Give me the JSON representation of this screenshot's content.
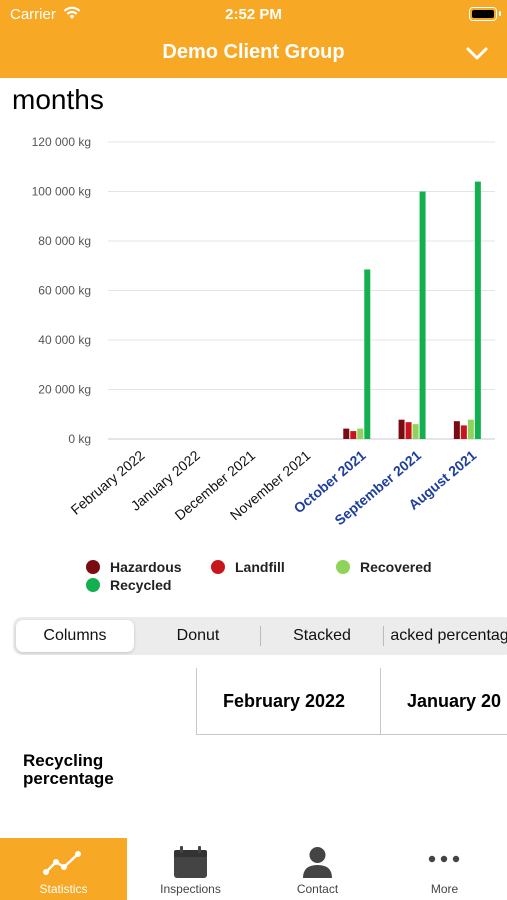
{
  "status_bar": {
    "carrier": "Carrier",
    "time": "2:52 PM"
  },
  "nav": {
    "title": "Demo Client Group"
  },
  "heading": "months",
  "chart_data": {
    "type": "bar",
    "title": "",
    "xlabel": "",
    "ylabel": "",
    "ylim": [
      0,
      120000
    ],
    "y_ticks": [
      "120 000 kg",
      "100 000 kg",
      "80 000 kg",
      "60 000 kg",
      "40 000 kg",
      "20 000 kg",
      "0 kg"
    ],
    "y_tick_values": [
      120000,
      100000,
      80000,
      60000,
      40000,
      20000,
      0
    ],
    "categories": [
      "February 2022",
      "January 2022",
      "December 2021",
      "November 2021",
      "October 2021",
      "September 2021",
      "August 2021"
    ],
    "highlighted_categories": [
      "October 2021",
      "September 2021",
      "August 2021"
    ],
    "series": [
      {
        "name": "Hazardous",
        "color": "#7a0b12",
        "values": [
          0,
          0,
          0,
          0,
          4200,
          7800,
          7200
        ]
      },
      {
        "name": "Landfill",
        "color": "#c8151b",
        "values": [
          0,
          0,
          0,
          0,
          3200,
          6800,
          5500
        ]
      },
      {
        "name": "Recovered",
        "color": "#8fd35a",
        "values": [
          0,
          0,
          0,
          0,
          4200,
          6000,
          7800
        ]
      },
      {
        "name": "Recycled",
        "color": "#14b04f",
        "values": [
          0,
          0,
          0,
          0,
          68500,
          100000,
          104000
        ]
      }
    ],
    "grid": true,
    "legend": "bottom"
  },
  "segments": {
    "columns": "Columns",
    "donut": "Donut",
    "stacked": "Stacked",
    "stacked_percentage": "acked percentage"
  },
  "table": {
    "col1": "February 2022",
    "col2": "January 20",
    "row_label": "Recycling percentage"
  },
  "tabs": {
    "statistics": "Statistics",
    "inspections": "Inspections",
    "contact": "Contact",
    "more": "More"
  },
  "colors": {
    "accent": "#f7a824"
  }
}
